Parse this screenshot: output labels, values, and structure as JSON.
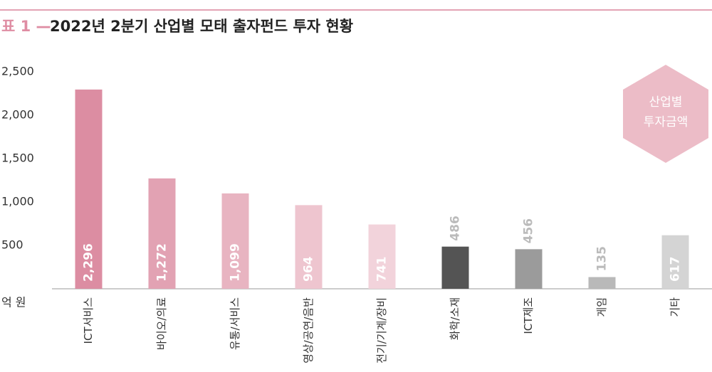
{
  "chart_data": {
    "type": "bar",
    "label": "표 1 —",
    "title": "2022년 2분기 산업별 모태 출자펀드 투자 현황",
    "unit": "억 원",
    "annotation": [
      "산업별",
      "투자금액"
    ],
    "categories": [
      "ICT서비스",
      "바이오/의료",
      "유통/서비스",
      "영상/공연/음반",
      "전기/기계/장비",
      "화학/소재",
      "ICT제조",
      "게임",
      "기타"
    ],
    "values": [
      2296,
      1272,
      1099,
      964,
      741,
      486,
      456,
      135,
      617
    ],
    "value_labels": [
      "2,296",
      "1,272",
      "1,099",
      "964",
      "741",
      "486",
      "456",
      "135",
      "617"
    ],
    "colors": [
      "#dc8da2",
      "#e2a2b3",
      "#e8b4c1",
      "#eec5cf",
      "#f2d3db",
      "#545454",
      "#9b9b9b",
      "#b9b9b9",
      "#d4d4d4"
    ],
    "ylim": [
      0,
      2500
    ],
    "yticks": [
      {
        "value": 500,
        "label": "500"
      },
      {
        "value": 1000,
        "label": "1,000"
      },
      {
        "value": 1500,
        "label": "1,500"
      },
      {
        "value": 2000,
        "label": "2,000"
      },
      {
        "value": 2500,
        "label": "2,500"
      }
    ],
    "grid": false
  }
}
